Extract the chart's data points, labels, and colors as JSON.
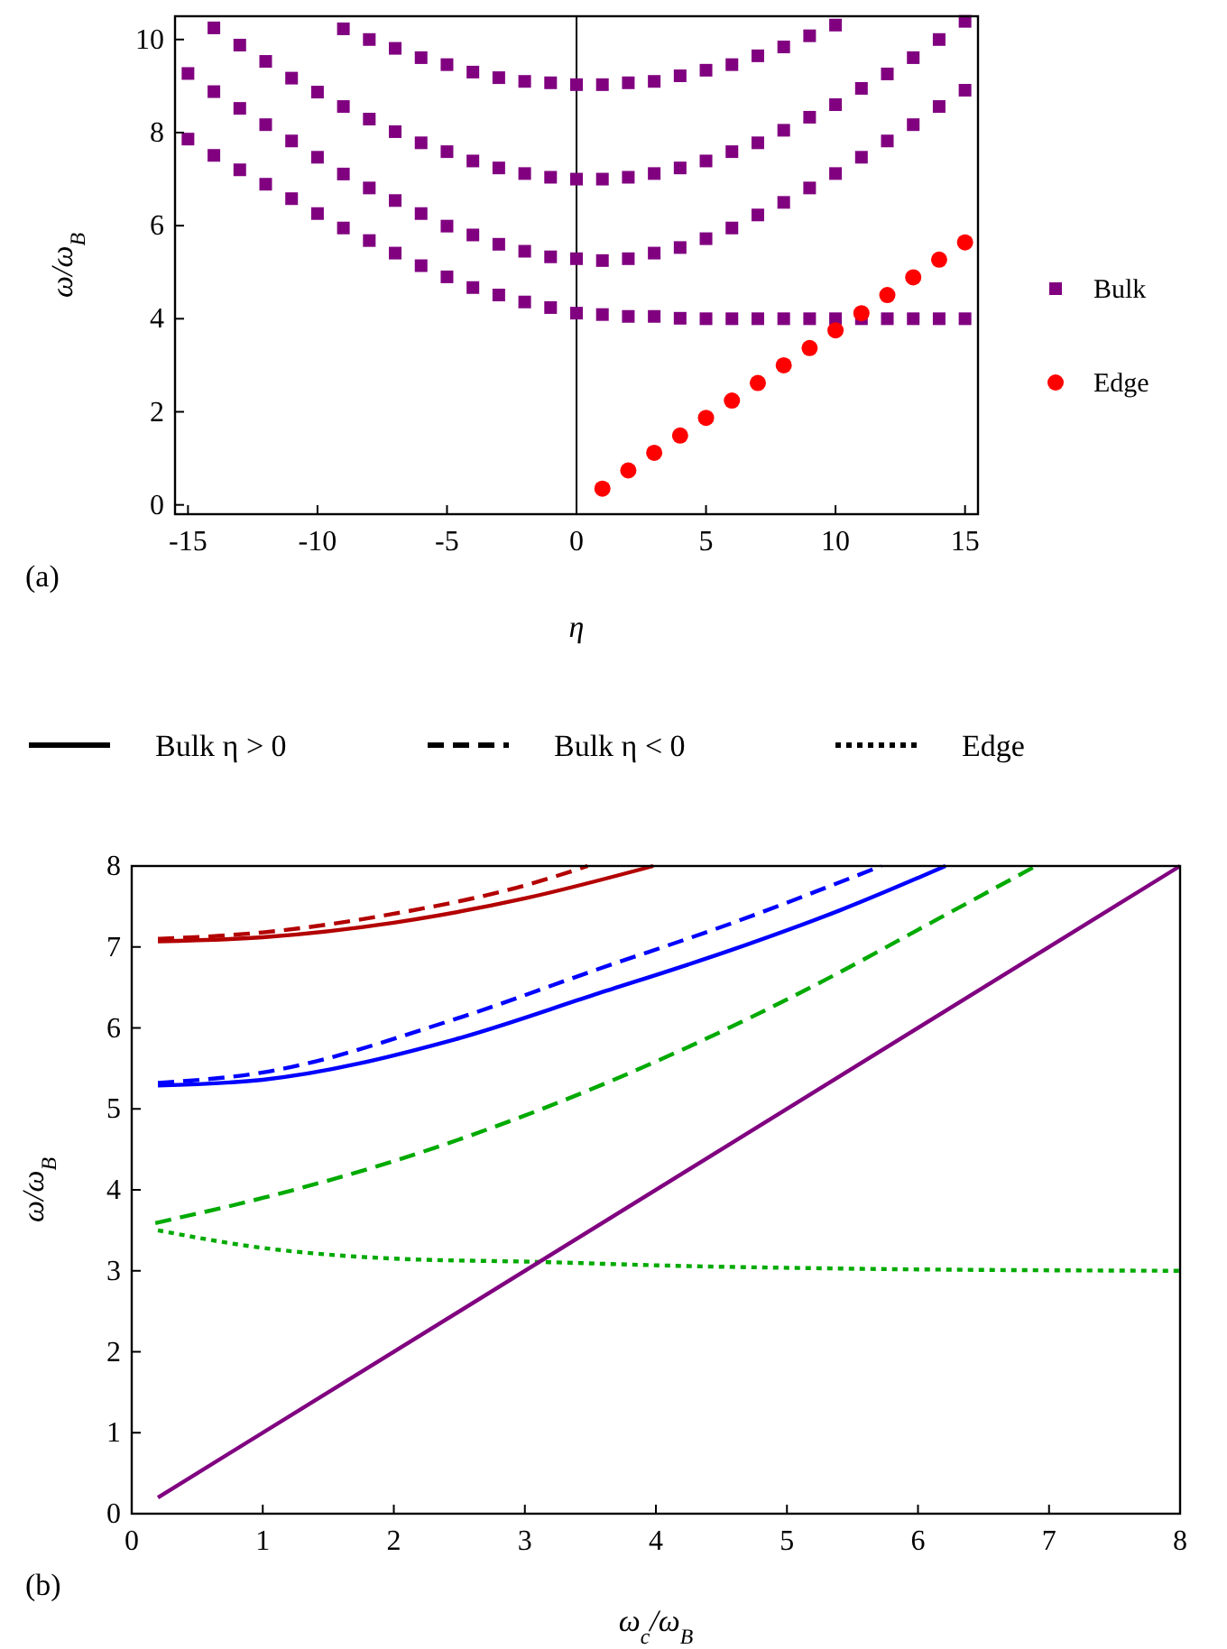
{
  "chart_data": [
    {
      "type": "scatter",
      "xlabel": "η",
      "ylabel": "ω/ω$_{B}$",
      "xlim": [
        -15.5,
        15.5
      ],
      "ylim": [
        -0.2,
        10.5
      ],
      "xticks": [
        -15,
        -10,
        -5,
        0,
        5,
        10,
        15
      ],
      "yticks": [
        0,
        2,
        4,
        6,
        8,
        10
      ],
      "legend": "right",
      "annotations": [
        "(a)"
      ],
      "ref_lines": [
        {
          "axis": "x",
          "value": 0,
          "color": "#000000"
        }
      ],
      "series": [
        {
          "name": "Bulk",
          "color": "#800080",
          "marker": "square",
          "x": [
            -15,
            -14,
            -13,
            -12,
            -11,
            -10,
            -9,
            -8,
            -7,
            -6,
            -5,
            -4,
            -3,
            -2,
            -1,
            0,
            1,
            2,
            3,
            4,
            5,
            6,
            7,
            8,
            9,
            10,
            11,
            12,
            13,
            14,
            15,
            -15,
            -14,
            -13,
            -12,
            -11,
            -10,
            -9,
            -8,
            -7,
            -6,
            -5,
            -4,
            -3,
            -2,
            -1,
            0,
            1,
            2,
            3,
            4,
            5,
            6,
            7,
            8,
            9,
            10,
            11,
            12,
            13,
            14,
            15,
            -14,
            -13,
            -12,
            -11,
            -10,
            -9,
            -8,
            -7,
            -6,
            -5,
            -4,
            -3,
            -2,
            -1,
            0,
            1,
            2,
            3,
            4,
            5,
            6,
            7,
            8,
            9,
            10,
            11,
            12,
            13,
            14,
            15,
            -9,
            -8,
            -7,
            -6,
            -5,
            -4,
            -3,
            -2,
            -1,
            0,
            1,
            2,
            3,
            4,
            5,
            6,
            7,
            8,
            9,
            10
          ],
          "values": [
            7.86,
            7.51,
            7.2,
            6.89,
            6.58,
            6.26,
            5.95,
            5.68,
            5.41,
            5.14,
            4.9,
            4.67,
            4.51,
            4.36,
            4.24,
            4.12,
            4.09,
            4.05,
            4.05,
            4.01,
            4.0,
            4.0,
            4.0,
            4.0,
            4.0,
            4.0,
            4.0,
            4.0,
            4.0,
            4.0,
            4.0,
            9.27,
            8.88,
            8.52,
            8.17,
            7.82,
            7.47,
            7.11,
            6.81,
            6.54,
            6.26,
            5.99,
            5.8,
            5.6,
            5.45,
            5.33,
            5.29,
            5.25,
            5.29,
            5.41,
            5.53,
            5.72,
            5.95,
            6.23,
            6.5,
            6.81,
            7.12,
            7.47,
            7.82,
            8.17,
            8.56,
            8.91,
            10.25,
            9.88,
            9.53,
            9.17,
            8.87,
            8.56,
            8.29,
            8.02,
            7.78,
            7.59,
            7.39,
            7.24,
            7.12,
            7.04,
            7.0,
            7.0,
            7.04,
            7.12,
            7.24,
            7.39,
            7.59,
            7.78,
            8.05,
            8.33,
            8.6,
            8.95,
            9.26,
            9.61,
            10.0,
            10.39,
            10.23,
            10.0,
            9.81,
            9.61,
            9.46,
            9.3,
            9.18,
            9.1,
            9.07,
            9.03,
            9.03,
            9.07,
            9.1,
            9.22,
            9.34,
            9.46,
            9.65,
            9.84,
            10.08,
            10.31
          ]
        },
        {
          "name": "Edge",
          "color": "#ff0000",
          "marker": "circle",
          "x": [
            1,
            2,
            3,
            4,
            5,
            6,
            7,
            8,
            9,
            10,
            11,
            12,
            13,
            14,
            15
          ],
          "values": [
            0.35,
            0.74,
            1.12,
            1.49,
            1.87,
            2.24,
            2.62,
            3.0,
            3.37,
            3.75,
            4.12,
            4.51,
            4.89,
            5.27,
            5.64
          ]
        }
      ]
    },
    {
      "type": "line",
      "xlabel": "ω$_{c}$/ω$_{B}$",
      "ylabel": "ω/ω$_{B}$",
      "xlim": [
        0,
        8
      ],
      "ylim": [
        0,
        8
      ],
      "xticks": [
        0,
        1,
        2,
        3,
        4,
        5,
        6,
        7,
        8
      ],
      "yticks": [
        0,
        1,
        2,
        3,
        4,
        5,
        6,
        7,
        8
      ],
      "annotations": [
        "(b)",
        "Bulk η > 0",
        "Bulk η < 0",
        "Edge"
      ],
      "series": [
        {
          "color": "#b30000",
          "line_style": "solid",
          "x": [
            0.2,
            1,
            2,
            3,
            3.98
          ],
          "values": [
            7.07,
            7.12,
            7.3,
            7.6,
            8.0
          ]
        },
        {
          "color": "#b30000",
          "line_style": "dashed",
          "x": [
            0.2,
            1,
            2,
            3,
            3.48
          ],
          "values": [
            7.1,
            7.18,
            7.41,
            7.76,
            8.0
          ]
        },
        {
          "color": "#0000ff",
          "line_style": "solid",
          "x": [
            0.2,
            1,
            2.47,
            3.53,
            4.59,
            5.4,
            6.21
          ],
          "values": [
            5.29,
            5.36,
            5.86,
            6.41,
            6.97,
            7.45,
            8.0
          ]
        },
        {
          "color": "#0000ff",
          "line_style": "dashed",
          "x": [
            0.2,
            1,
            2.47,
            3.53,
            4.59,
            5.72
          ],
          "values": [
            5.32,
            5.45,
            6.11,
            6.71,
            7.3,
            8.0
          ]
        },
        {
          "color": "#00aa00",
          "line_style": "dashed",
          "x": [
            0.18,
            1,
            2.01,
            3.1,
            4.2,
            5.3,
            6.1,
            6.9
          ],
          "values": [
            3.59,
            3.9,
            4.36,
            4.98,
            5.73,
            6.6,
            7.3,
            8.0
          ]
        },
        {
          "color": "#00aa00",
          "line_style": "dotted",
          "x": [
            0.2,
            0.92,
            2.01,
            3.1,
            4.2,
            5.3,
            8
          ],
          "values": [
            3.5,
            3.3,
            3.15,
            3.11,
            3.06,
            3.03,
            3.0
          ]
        },
        {
          "color": "#800080",
          "line_style": "solid",
          "x": [
            0.2,
            8
          ],
          "values": [
            0.2,
            8
          ]
        }
      ]
    }
  ]
}
